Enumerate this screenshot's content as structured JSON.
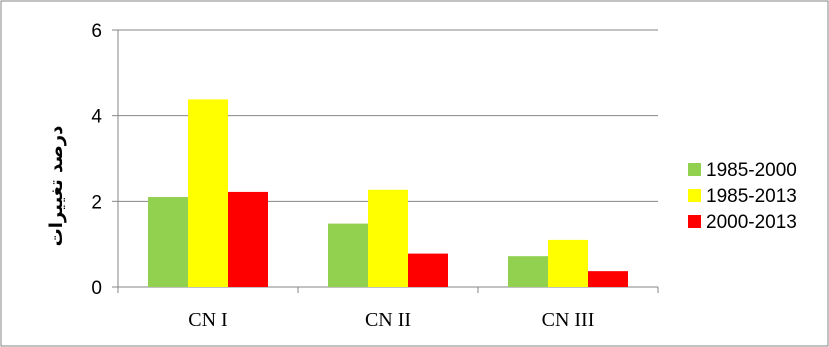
{
  "chart_data": {
    "type": "bar",
    "title": "",
    "xlabel": "",
    "ylabel": "درصد تغییرات",
    "ylim": [
      0,
      6
    ],
    "yticks": [
      "0",
      "2",
      "4",
      "6"
    ],
    "grid": true,
    "legend_position": "right",
    "categories": [
      "CN I",
      "CN II",
      "CN III"
    ],
    "series": [
      {
        "name": "1985-2000",
        "color": "#92d050",
        "values": [
          2.1,
          1.48,
          0.72
        ]
      },
      {
        "name": "1985-2013",
        "color": "#ffff00",
        "values": [
          4.38,
          2.27,
          1.1
        ]
      },
      {
        "name": "2000-2013",
        "color": "#ff0000",
        "values": [
          2.22,
          0.78,
          0.37
        ]
      }
    ]
  }
}
